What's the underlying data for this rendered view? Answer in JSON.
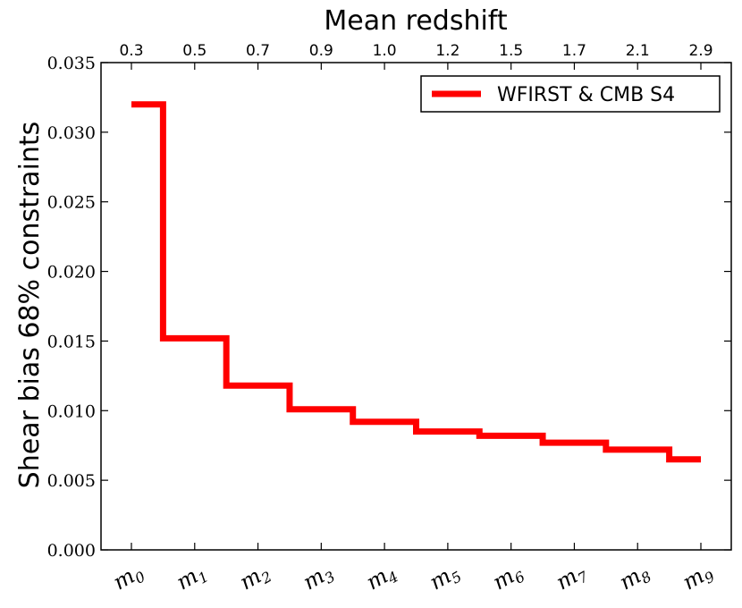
{
  "chart_data": {
    "type": "line",
    "style": "step",
    "categories": [
      "m0",
      "m1",
      "m2",
      "m3",
      "m4",
      "m5",
      "m6",
      "m7",
      "m8",
      "m9"
    ],
    "category_labels": [
      {
        "base": "m",
        "sub": "0"
      },
      {
        "base": "m",
        "sub": "1"
      },
      {
        "base": "m",
        "sub": "2"
      },
      {
        "base": "m",
        "sub": "3"
      },
      {
        "base": "m",
        "sub": "4"
      },
      {
        "base": "m",
        "sub": "5"
      },
      {
        "base": "m",
        "sub": "6"
      },
      {
        "base": "m",
        "sub": "7"
      },
      {
        "base": "m",
        "sub": "8"
      },
      {
        "base": "m",
        "sub": "9"
      }
    ],
    "top_axis_label": "Mean redshift",
    "top_tick_labels": [
      "0.3",
      "0.5",
      "0.7",
      "0.9",
      "1.0",
      "1.2",
      "1.5",
      "1.7",
      "2.1",
      "2.9"
    ],
    "ylabel": "Shear bias 68% constraints",
    "ylim": [
      0,
      0.035
    ],
    "yticks": [
      "0.000",
      "0.005",
      "0.010",
      "0.015",
      "0.020",
      "0.025",
      "0.030",
      "0.035"
    ],
    "series": [
      {
        "name": "WFIRST & CMB S4",
        "color": "#ff0000",
        "values": [
          0.032,
          0.0152,
          0.0118,
          0.0101,
          0.0092,
          0.0085,
          0.0082,
          0.0077,
          0.0072,
          0.0065
        ]
      }
    ],
    "legend": "top-right",
    "grid": false
  }
}
